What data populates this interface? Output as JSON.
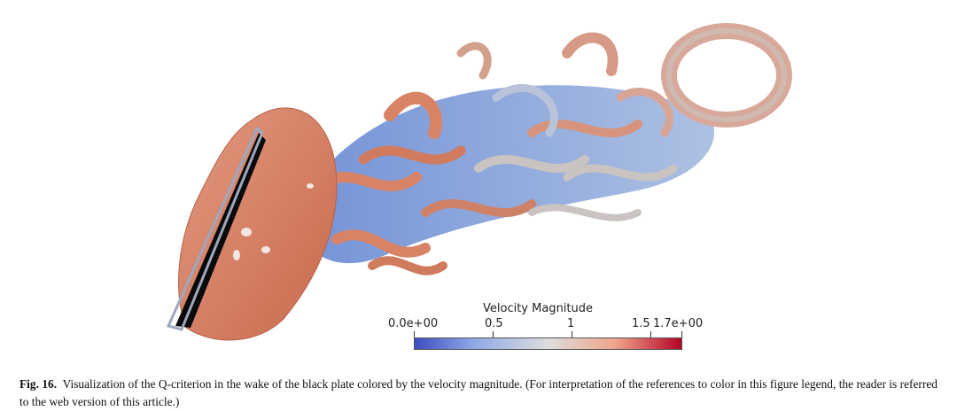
{
  "colorbar": {
    "title": "Velocity Magnitude",
    "min": 0.0,
    "max": 1.7,
    "ticks": [
      {
        "value": 0.0,
        "label": "0.0e+00"
      },
      {
        "value": 0.5,
        "label": "0.5"
      },
      {
        "value": 1.0,
        "label": "1"
      },
      {
        "value": 1.5,
        "label": "1.5"
      },
      {
        "value": 1.7,
        "label": "1.7e+00"
      }
    ],
    "colors": {
      "low": "#3b4cc0",
      "mid": "#dddddd",
      "high": "#b40426"
    }
  },
  "caption": {
    "label": "Fig. 16.",
    "text": "Visualization of the Q-criterion in the wake of the black plate colored by the velocity magnitude. (For interpretation of the references to color in this figure legend, the reader is referred to the web version of this article.)"
  },
  "colors": {
    "plate": "#0a0a0a",
    "high_velocity_surface": "#d98366",
    "low_velocity_surface": "#7391d0",
    "neutral_surface": "#c9c4c2"
  }
}
